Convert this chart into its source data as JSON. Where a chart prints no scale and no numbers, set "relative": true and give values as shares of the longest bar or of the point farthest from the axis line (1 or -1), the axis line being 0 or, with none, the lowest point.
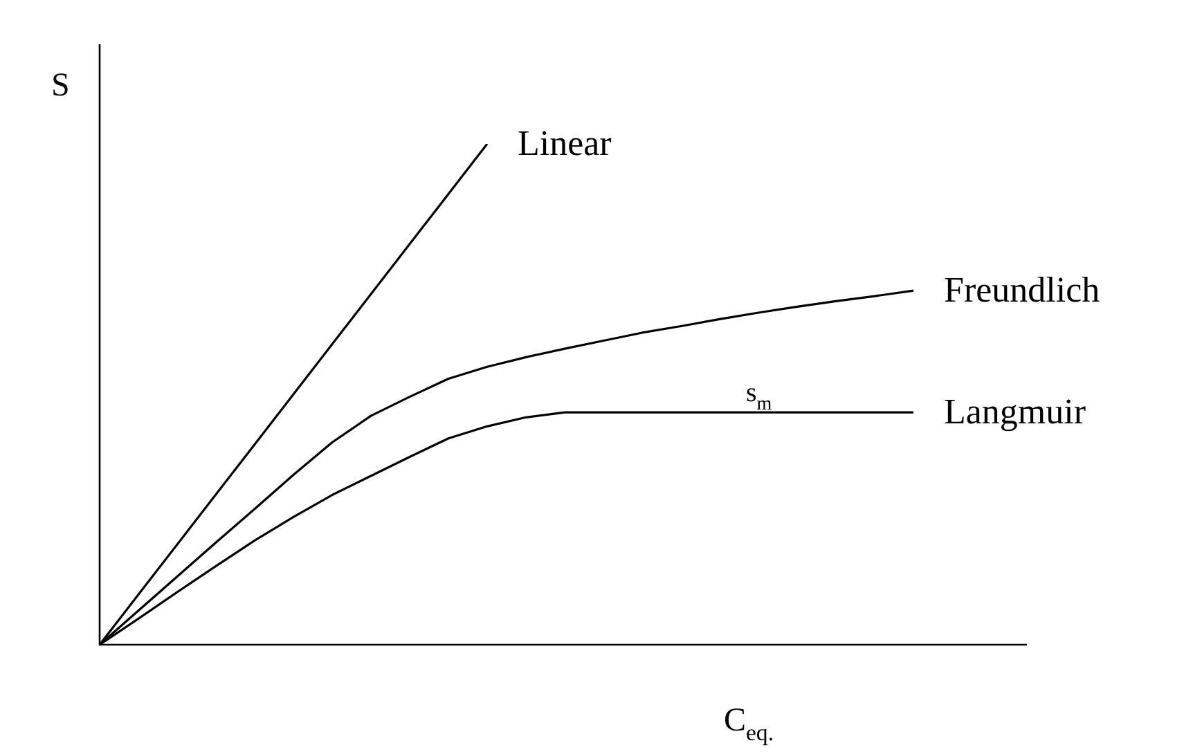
{
  "chart_data": {
    "type": "line",
    "relative": true,
    "legend": false,
    "marker": "none",
    "line_style": "solid",
    "xlabel": "C$_{eq.}$",
    "ylabel": "S",
    "categories": [
      null,
      null,
      null,
      null,
      null,
      null,
      null,
      null,
      null,
      null,
      null,
      null,
      null,
      null,
      null,
      null,
      null,
      null,
      null,
      null,
      null,
      null
    ],
    "annotations": [
      {
        "text": "s$_{m}$",
        "y": 0.464
      }
    ],
    "series": [
      {
        "name": "Linear",
        "color": "#000000",
        "values": [
          0,
          0.1,
          0.2,
          0.3,
          0.4,
          0.5,
          0.6,
          0.7,
          0.8,
          0.9,
          1,
          null,
          null,
          null,
          null,
          null,
          null,
          null,
          null,
          null,
          null,
          null
        ]
      },
      {
        "name": "Freundlich",
        "color": "#000000",
        "values": [
          0,
          0.068,
          0.136,
          0.204,
          0.271,
          0.339,
          0.404,
          0.457,
          0.495,
          0.531,
          0.555,
          0.574,
          0.591,
          0.607,
          0.623,
          0.636,
          0.65,
          0.663,
          0.675,
          0.686,
          0.696,
          0.707
        ]
      },
      {
        "name": "Langmuir",
        "color": "#000000",
        "values": [
          0,
          0.052,
          0.105,
          0.157,
          0.208,
          0.255,
          0.299,
          0.337,
          0.375,
          0.412,
          0.436,
          0.454,
          0.464,
          0.464,
          0.464,
          0.464,
          0.464,
          0.464,
          0.464,
          0.464,
          0.464,
          0.464
        ]
      }
    ]
  }
}
